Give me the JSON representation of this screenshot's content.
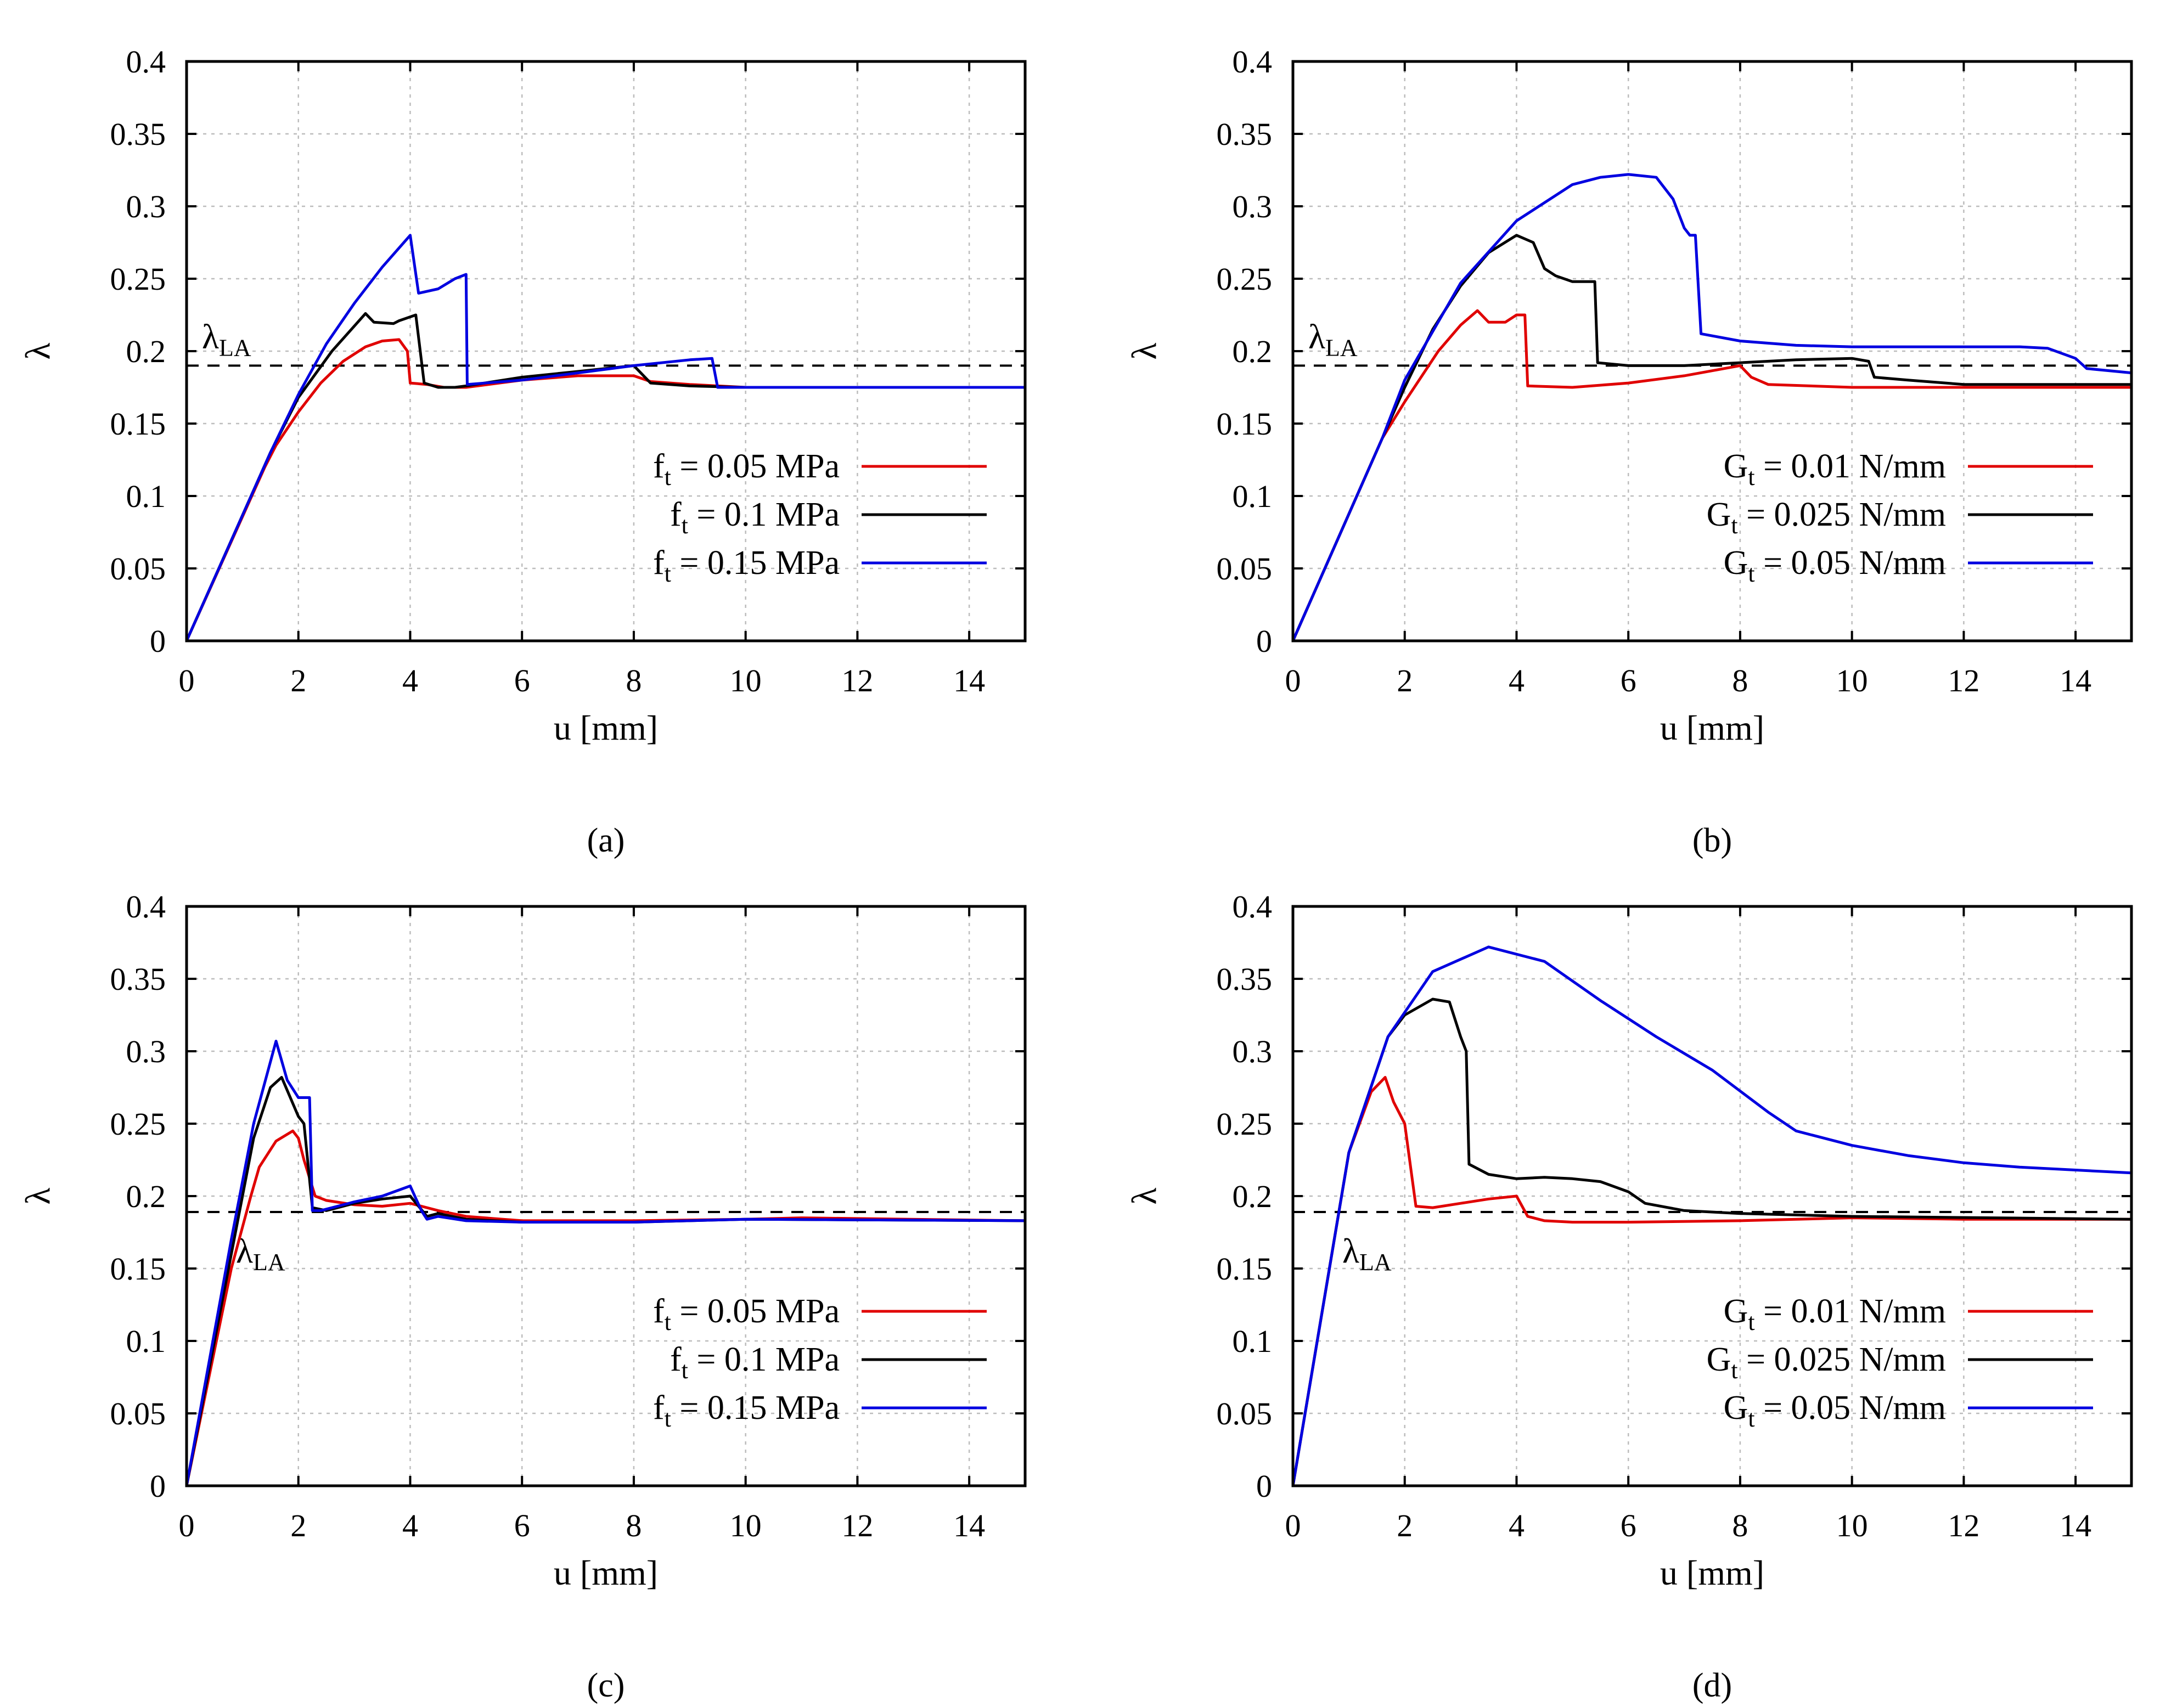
{
  "chart_data": [
    {
      "id": "a",
      "type": "line",
      "caption": "(a)",
      "xlabel": "u [mm]",
      "ylabel": "λ",
      "xlim": [
        0,
        15
      ],
      "ylim": [
        0,
        0.4
      ],
      "xticks": [
        0,
        2,
        4,
        6,
        8,
        10,
        12,
        14
      ],
      "yticks": [
        0,
        0.05,
        0.1,
        0.15,
        0.2,
        0.25,
        0.3,
        0.35,
        0.4
      ],
      "grid": true,
      "reference": {
        "label": "λ",
        "label_sub": "LA",
        "value": 0.19,
        "label_position": "above-left"
      },
      "legend": {
        "position": "bottom-right"
      },
      "series": [
        {
          "name": "f",
          "name_sub": "t",
          "name_rest": " = 0.05 MPa",
          "color": "#e00000",
          "x": [
            0,
            1.4,
            1.6,
            2,
            2.4,
            2.8,
            3.2,
            3.5,
            3.8,
            3.95,
            4.0,
            4.3,
            4.6,
            5.0,
            6,
            7,
            8,
            8.3,
            9,
            10,
            12,
            15
          ],
          "y": [
            0,
            0.12,
            0.135,
            0.158,
            0.178,
            0.193,
            0.203,
            0.207,
            0.208,
            0.2,
            0.178,
            0.177,
            0.175,
            0.175,
            0.18,
            0.183,
            0.183,
            0.179,
            0.177,
            0.175,
            0.175,
            0.175
          ]
        },
        {
          "name": "f",
          "name_sub": "t",
          "name_rest": " = 0.1 MPa",
          "color": "#000000",
          "x": [
            0,
            1.5,
            2,
            2.6,
            3.2,
            3.35,
            3.7,
            3.8,
            4.1,
            4.25,
            4.5,
            4.8,
            5.0,
            6,
            7,
            8,
            8.3,
            9,
            10,
            15
          ],
          "y": [
            0,
            0.13,
            0.168,
            0.2,
            0.226,
            0.22,
            0.219,
            0.221,
            0.225,
            0.178,
            0.175,
            0.175,
            0.176,
            0.182,
            0.186,
            0.19,
            0.178,
            0.176,
            0.175,
            0.175
          ]
        },
        {
          "name": "f",
          "name_sub": "t",
          "name_rest": " = 0.15 MPa",
          "color": "#0000e0",
          "x": [
            0,
            1.5,
            2,
            2.5,
            3.0,
            3.5,
            4.0,
            4.15,
            4.5,
            4.8,
            5.0,
            5.02,
            6,
            7,
            8,
            9,
            9.4,
            9.5,
            10,
            15
          ],
          "y": [
            0,
            0.13,
            0.17,
            0.205,
            0.233,
            0.258,
            0.28,
            0.24,
            0.243,
            0.25,
            0.253,
            0.177,
            0.18,
            0.185,
            0.19,
            0.194,
            0.195,
            0.175,
            0.175,
            0.175
          ]
        }
      ]
    },
    {
      "id": "b",
      "type": "line",
      "caption": "(b)",
      "xlabel": "u [mm]",
      "ylabel": "λ",
      "xlim": [
        0,
        15
      ],
      "ylim": [
        0,
        0.4
      ],
      "xticks": [
        0,
        2,
        4,
        6,
        8,
        10,
        12,
        14
      ],
      "yticks": [
        0,
        0.05,
        0.1,
        0.15,
        0.2,
        0.25,
        0.3,
        0.35,
        0.4
      ],
      "grid": true,
      "reference": {
        "label": "λ",
        "label_sub": "LA",
        "value": 0.19,
        "label_position": "above-left"
      },
      "legend": {
        "position": "bottom-right"
      },
      "series": [
        {
          "name": "G",
          "name_sub": "t",
          "name_rest": " = 0.01 N/mm",
          "color": "#e00000",
          "x": [
            0,
            1.6,
            2,
            2.6,
            3.0,
            3.3,
            3.5,
            3.8,
            4.0,
            4.15,
            4.2,
            5,
            6,
            7,
            8,
            8.2,
            8.5,
            10,
            12,
            15
          ],
          "y": [
            0,
            0.14,
            0.165,
            0.2,
            0.218,
            0.228,
            0.22,
            0.22,
            0.225,
            0.225,
            0.176,
            0.175,
            0.178,
            0.183,
            0.19,
            0.182,
            0.177,
            0.175,
            0.175,
            0.175
          ]
        },
        {
          "name": "G",
          "name_sub": "t",
          "name_rest": " = 0.025 N/mm",
          "color": "#000000",
          "x": [
            0,
            1.6,
            2,
            2.5,
            3,
            3.5,
            4.0,
            4.3,
            4.5,
            4.7,
            5.0,
            5.4,
            5.45,
            6,
            7,
            8,
            9,
            10,
            10.3,
            10.4,
            11,
            12,
            15
          ],
          "y": [
            0,
            0.14,
            0.175,
            0.215,
            0.245,
            0.268,
            0.28,
            0.275,
            0.257,
            0.252,
            0.248,
            0.248,
            0.192,
            0.19,
            0.19,
            0.192,
            0.194,
            0.195,
            0.193,
            0.182,
            0.18,
            0.177,
            0.177
          ]
        },
        {
          "name": "G",
          "name_sub": "t",
          "name_rest": " = 0.05 N/mm",
          "color": "#0000e0",
          "x": [
            0,
            1.6,
            2,
            3,
            4,
            5,
            5.5,
            6,
            6.5,
            6.8,
            7.0,
            7.1,
            7.2,
            7.3,
            8,
            9,
            10,
            11,
            12,
            13,
            13.5,
            14,
            14.2,
            15
          ],
          "y": [
            0,
            0.14,
            0.18,
            0.247,
            0.29,
            0.315,
            0.32,
            0.322,
            0.32,
            0.305,
            0.285,
            0.28,
            0.28,
            0.212,
            0.207,
            0.204,
            0.203,
            0.203,
            0.203,
            0.203,
            0.202,
            0.195,
            0.188,
            0.185
          ]
        }
      ]
    },
    {
      "id": "c",
      "type": "line",
      "caption": "(c)",
      "xlabel": "u [mm]",
      "ylabel": "λ",
      "xlim": [
        0,
        15
      ],
      "ylim": [
        0,
        0.4
      ],
      "xticks": [
        0,
        2,
        4,
        6,
        8,
        10,
        12,
        14
      ],
      "yticks": [
        0,
        0.05,
        0.1,
        0.15,
        0.2,
        0.25,
        0.3,
        0.35,
        0.4
      ],
      "grid": true,
      "reference": {
        "label": "λ",
        "label_sub": "LA",
        "value": 0.189,
        "label_position": "below-left"
      },
      "legend": {
        "position": "bottom-right"
      },
      "series": [
        {
          "name": "f",
          "name_sub": "t",
          "name_rest": " = 0.05 MPa",
          "color": "#e00000",
          "x": [
            0,
            0.8,
            1.15,
            1.3,
            1.6,
            1.9,
            2.0,
            2.1,
            2.3,
            2.5,
            3,
            3.5,
            4,
            4.5,
            5,
            6,
            8,
            10,
            11,
            15
          ],
          "y": [
            0,
            0.15,
            0.2,
            0.22,
            0.238,
            0.245,
            0.24,
            0.225,
            0.2,
            0.197,
            0.194,
            0.193,
            0.195,
            0.19,
            0.186,
            0.183,
            0.183,
            0.184,
            0.185,
            0.183
          ]
        },
        {
          "name": "f",
          "name_sub": "t",
          "name_rest": " = 0.1 MPa",
          "color": "#000000",
          "x": [
            0,
            0.8,
            1.2,
            1.5,
            1.7,
            2.0,
            2.1,
            2.25,
            2.5,
            3,
            3.5,
            4,
            4.3,
            4.5,
            5,
            6,
            8,
            10,
            15
          ],
          "y": [
            0,
            0.16,
            0.24,
            0.275,
            0.282,
            0.255,
            0.25,
            0.192,
            0.19,
            0.195,
            0.198,
            0.2,
            0.186,
            0.188,
            0.184,
            0.182,
            0.182,
            0.184,
            0.183
          ]
        },
        {
          "name": "f",
          "name_sub": "t",
          "name_rest": " = 0.15 MPa",
          "color": "#0000e0",
          "x": [
            0,
            0.8,
            1.2,
            1.6,
            1.8,
            2.0,
            2.2,
            2.25,
            2.4,
            3,
            3.5,
            4,
            4.2,
            4.3,
            4.5,
            5,
            6,
            8,
            10,
            15
          ],
          "y": [
            0,
            0.17,
            0.25,
            0.307,
            0.28,
            0.268,
            0.268,
            0.19,
            0.19,
            0.196,
            0.2,
            0.207,
            0.19,
            0.184,
            0.186,
            0.183,
            0.182,
            0.182,
            0.184,
            0.183
          ]
        }
      ]
    },
    {
      "id": "d",
      "type": "line",
      "caption": "(d)",
      "xlabel": "u [mm]",
      "ylabel": "λ",
      "xlim": [
        0,
        15
      ],
      "ylim": [
        0,
        0.4
      ],
      "xticks": [
        0,
        2,
        4,
        6,
        8,
        10,
        12,
        14
      ],
      "yticks": [
        0,
        0.05,
        0.1,
        0.15,
        0.2,
        0.25,
        0.3,
        0.35,
        0.4
      ],
      "grid": true,
      "reference": {
        "label": "λ",
        "label_sub": "LA",
        "value": 0.189,
        "label_position": "below-left"
      },
      "legend": {
        "position": "bottom-right"
      },
      "series": [
        {
          "name": "G",
          "name_sub": "t",
          "name_rest": " = 0.01 N/mm",
          "color": "#e00000",
          "x": [
            0,
            1.0,
            1.4,
            1.65,
            1.8,
            2.0,
            2.2,
            2.5,
            3,
            3.5,
            4.0,
            4.2,
            4.5,
            5,
            6,
            8,
            10,
            12,
            15
          ],
          "y": [
            0,
            0.23,
            0.272,
            0.282,
            0.265,
            0.25,
            0.193,
            0.192,
            0.195,
            0.198,
            0.2,
            0.186,
            0.183,
            0.182,
            0.182,
            0.183,
            0.185,
            0.184,
            0.184
          ]
        },
        {
          "name": "G",
          "name_sub": "t",
          "name_rest": " = 0.025 N/mm",
          "color": "#000000",
          "x": [
            0,
            1.0,
            1.7,
            2.0,
            2.5,
            2.8,
            3.0,
            3.1,
            3.15,
            3.5,
            4,
            4.5,
            5,
            5.5,
            6,
            6.3,
            7,
            8,
            10,
            15
          ],
          "y": [
            0,
            0.23,
            0.31,
            0.325,
            0.336,
            0.334,
            0.31,
            0.3,
            0.222,
            0.215,
            0.212,
            0.213,
            0.212,
            0.21,
            0.203,
            0.195,
            0.19,
            0.188,
            0.186,
            0.184
          ]
        },
        {
          "name": "G",
          "name_sub": "t",
          "name_rest": " = 0.05 N/mm",
          "color": "#0000e0",
          "x": [
            0,
            1.0,
            1.7,
            2.5,
            3.5,
            4.5,
            5.5,
            6.5,
            7.5,
            8.5,
            9,
            10,
            11,
            12,
            13,
            14,
            15
          ],
          "y": [
            0,
            0.23,
            0.31,
            0.355,
            0.372,
            0.362,
            0.335,
            0.31,
            0.287,
            0.258,
            0.245,
            0.235,
            0.228,
            0.223,
            0.22,
            0.218,
            0.216
          ]
        }
      ]
    }
  ]
}
